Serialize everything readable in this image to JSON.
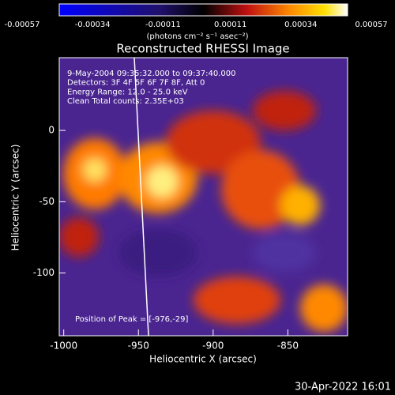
{
  "chart_data": {
    "type": "heatmap",
    "title": "Reconstructed RHESSI Image",
    "colorbar": {
      "range": [
        -0.00057,
        0.00057
      ],
      "ticks": [
        -0.00057,
        -0.00034,
        -0.00011,
        0.00011,
        0.00034,
        0.00057
      ],
      "label": "(photons cm⁻² s⁻¹ asec⁻²)"
    },
    "xlabel": "Heliocentric X (arcsec)",
    "ylabel": "Heliocentric Y (arcsec)",
    "xlim": [
      -1003,
      -810
    ],
    "xticks": [
      -1000,
      -950,
      -900,
      -850
    ],
    "ylim": [
      -144,
      51
    ],
    "yticks": [
      0,
      -50,
      -100
    ],
    "annotations": [
      "9-May-2004 09:35:32.000 to 09:37:40.000",
      "Detectors: 3F 4F 5F 6F 7F 8F, Att 0",
      "Energy Range: 12.0 - 25.0 keV",
      "Clean    Total counts: 2.35E+03"
    ],
    "peak_label": "Position of Peak = [-976,-29]",
    "timestamp": "30-Apr-2022 16:01"
  }
}
